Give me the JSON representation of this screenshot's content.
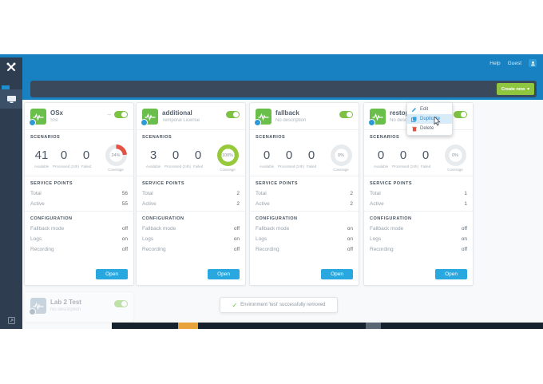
{
  "window": {
    "help_label": "Help",
    "user_label": "Guest",
    "create_button_label": "Create new",
    "create_button_caret": "▾"
  },
  "labels": {
    "scenarios": "SCENARIOS",
    "available": "Available",
    "processed": "Processed (24h)",
    "failed": "Failed",
    "coverage": "Coverage",
    "service_points": "SERVICE POINTS",
    "total": "Total",
    "active": "Active",
    "configuration": "CONFIGURATION",
    "fallback_mode": "Fallback mode",
    "logs": "Logs",
    "recording": "Recording",
    "open": "Open"
  },
  "cards": [
    {
      "title": "OSx",
      "subtitle": "SSI",
      "toggle_on": true,
      "has_menu_dash": true,
      "scenarios": {
        "available": "41",
        "processed": "0",
        "failed": "0",
        "coverage_pct": 24,
        "coverage_color": "#e05345"
      },
      "service_points": {
        "total": "56",
        "active": "55"
      },
      "configuration": {
        "fallback_mode": "off",
        "logs": "on",
        "recording": "off"
      }
    },
    {
      "title": "additional",
      "subtitle": "Temporal License",
      "toggle_on": true,
      "has_menu_dash": false,
      "scenarios": {
        "available": "3",
        "processed": "0",
        "failed": "0",
        "coverage_pct": 100,
        "coverage_color": "#97c93d"
      },
      "service_points": {
        "total": "2",
        "active": "2"
      },
      "configuration": {
        "fallback_mode": "off",
        "logs": "on",
        "recording": "off"
      }
    },
    {
      "title": "fallback",
      "subtitle": "No description",
      "toggle_on": true,
      "has_menu_dash": false,
      "scenarios": {
        "available": "0",
        "processed": "0",
        "failed": "0",
        "coverage_pct": 0,
        "coverage_color": "#d4d9dd"
      },
      "service_points": {
        "total": "2",
        "active": "2"
      },
      "configuration": {
        "fallback_mode": "on",
        "logs": "on",
        "recording": "off"
      }
    },
    {
      "title": "restops",
      "subtitle": "No description",
      "toggle_on": true,
      "has_menu_dash": true,
      "scenarios": {
        "available": "0",
        "processed": "0",
        "failed": "0",
        "coverage_pct": 0,
        "coverage_color": "#d4d9dd"
      },
      "service_points": {
        "total": "1",
        "active": "1"
      },
      "configuration": {
        "fallback_mode": "off",
        "logs": "on",
        "recording": "off"
      }
    }
  ],
  "context_menu": {
    "items": [
      {
        "label": "Edit"
      },
      {
        "label": "Duplicate",
        "highlighted": true
      },
      {
        "label": "Delete"
      }
    ]
  },
  "toast": {
    "message": "Environment 'test' successfully removed"
  },
  "faded_card": {
    "title": "Lab 2 Test",
    "subtitle": "No description"
  },
  "colors": {
    "header_blue": "#1781c2",
    "sidebar_navy": "#2e3e50",
    "toolbar_navy": "#3b495d",
    "create_green": "#8ec63f",
    "open_blue": "#29a8e0",
    "toggle_green": "#7dc243",
    "coverage_red": "#e05345",
    "coverage_green": "#97c93d"
  }
}
